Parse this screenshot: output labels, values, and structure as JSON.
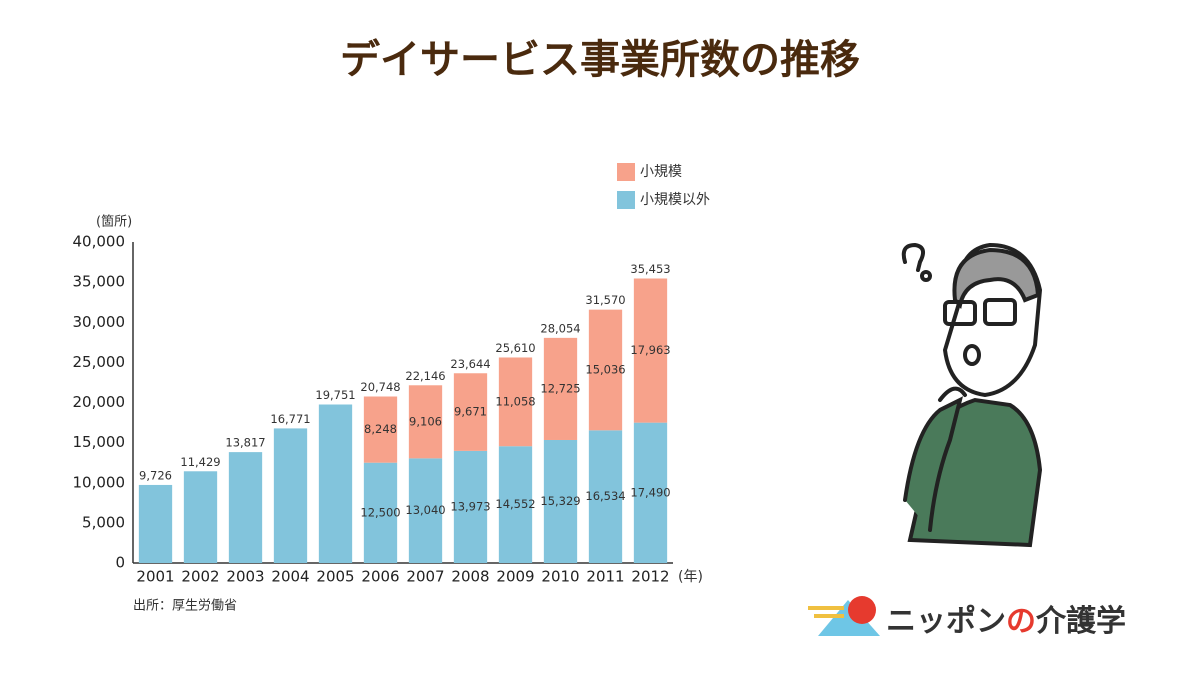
{
  "chart_data": {
    "type": "bar",
    "stacked": true,
    "title": "デイサービス事業所数の推移",
    "y_axis_label": "(箇所)",
    "x_axis_label": "(年)",
    "source": "出所：厚生労働省",
    "categories": [
      "2001",
      "2002",
      "2003",
      "2004",
      "2005",
      "2006",
      "2007",
      "2008",
      "2009",
      "2010",
      "2011",
      "2012"
    ],
    "series": [
      {
        "name": "小規模以外",
        "color": "#82c4dc",
        "values": [
          9726,
          11429,
          13817,
          16771,
          19751,
          12500,
          13040,
          13973,
          14552,
          15329,
          16534,
          17490
        ],
        "value_labels": [
          "9,726",
          "11,429",
          "13,817",
          "16,771",
          "19,751",
          "12,500",
          "13,040",
          "13,973",
          "14,552",
          "15,329",
          "16,534",
          "17,490"
        ]
      },
      {
        "name": "小規模",
        "color": "#f7a28b",
        "values": [
          null,
          null,
          null,
          null,
          null,
          8248,
          9106,
          9671,
          11058,
          12725,
          15036,
          17963
        ],
        "value_labels": [
          null,
          null,
          null,
          null,
          null,
          "8,248",
          "9,106",
          "9,671",
          "11,058",
          "12,725",
          "15,036",
          "17,963"
        ]
      }
    ],
    "totals": [
      null,
      null,
      null,
      null,
      null,
      20748,
      22146,
      23644,
      25610,
      28054,
      31570,
      35453
    ],
    "total_labels": [
      null,
      null,
      null,
      null,
      null,
      "20,748",
      "22,146",
      "23,644",
      "25,610",
      "28,054",
      "31,570",
      "35,453"
    ],
    "ylim": [
      0,
      40000
    ],
    "yticks": [
      0,
      {
        "value": 5000,
        "label": "5,000"
      },
      {
        "value": 10000,
        "label": "10,000"
      },
      {
        "value": 15000,
        "label": "15,000"
      },
      {
        "value": 20000,
        "label": "20,000"
      },
      {
        "value": 25000,
        "label": "25,000"
      },
      {
        "value": 30000,
        "label": "30,000"
      },
      {
        "value": 35000,
        "label": "35,000"
      },
      {
        "value": 40000,
        "label": "40,000"
      }
    ]
  },
  "logo": {
    "part1": "ニッポン",
    "part2": "の",
    "part3": "介護学"
  }
}
